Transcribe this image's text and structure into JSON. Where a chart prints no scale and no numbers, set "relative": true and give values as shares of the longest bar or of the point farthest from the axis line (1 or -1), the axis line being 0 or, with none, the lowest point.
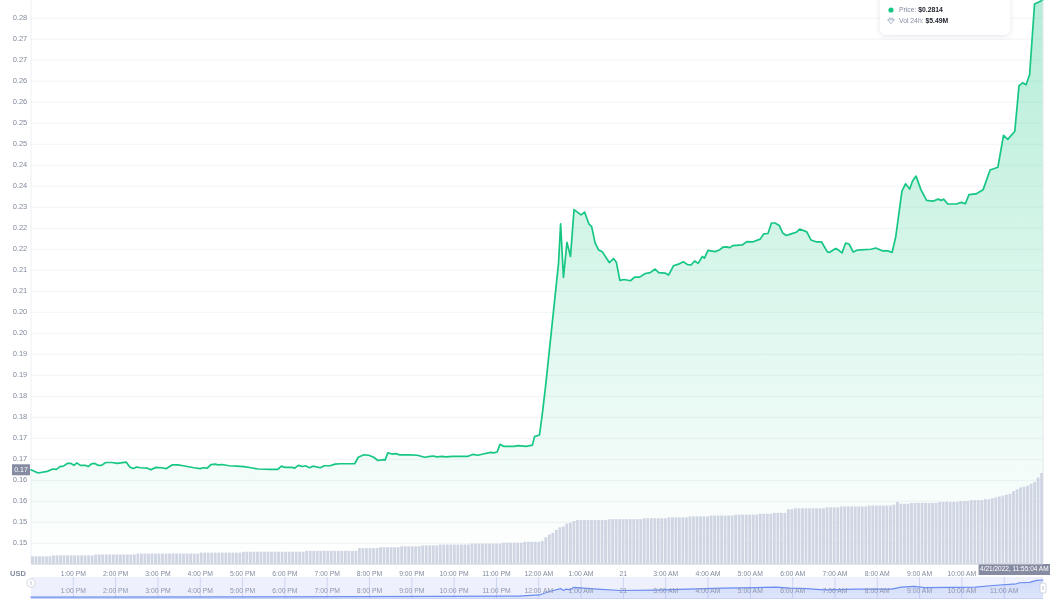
{
  "chart_data": [
    {
      "type": "area",
      "color": "#16c784",
      "ylabel": "USD",
      "grid": "y",
      "xlim": [
        "2022-04-20T12:00",
        "2022-04-21T11:55"
      ],
      "ylim": [
        0.1419,
        0.2814
      ],
      "xticks": [
        {
          "value": "2022-04-20T13:00",
          "label": "1:00 PM"
        },
        {
          "value": "2022-04-20T14:00",
          "label": "2:00 PM"
        },
        {
          "value": "2022-04-20T15:00",
          "label": "3:00 PM"
        },
        {
          "value": "2022-04-20T16:00",
          "label": "4:00 PM"
        },
        {
          "value": "2022-04-20T17:00",
          "label": "5:00 PM"
        },
        {
          "value": "2022-04-20T18:00",
          "label": "6:00 PM"
        },
        {
          "value": "2022-04-20T19:00",
          "label": "7:00 PM"
        },
        {
          "value": "2022-04-20T20:00",
          "label": "8:00 PM"
        },
        {
          "value": "2022-04-20T21:00",
          "label": "9:00 PM"
        },
        {
          "value": "2022-04-20T22:00",
          "label": "10:00 PM"
        },
        {
          "value": "2022-04-20T23:00",
          "label": "11:00 PM"
        },
        {
          "value": "2022-04-21T00:00",
          "label": "12:00 AM"
        },
        {
          "value": "2022-04-21T01:00",
          "label": "1:00 AM"
        },
        {
          "value": "2022-04-21T02:00",
          "label": "21"
        },
        {
          "value": "2022-04-21T03:00",
          "label": "3:00 AM"
        },
        {
          "value": "2022-04-21T04:00",
          "label": "4:00 AM"
        },
        {
          "value": "2022-04-21T05:00",
          "label": "5:00 AM"
        },
        {
          "value": "2022-04-21T06:00",
          "label": "6:00 AM"
        },
        {
          "value": "2022-04-21T07:00",
          "label": "7:00 AM"
        },
        {
          "value": "2022-04-21T08:00",
          "label": "8:00 AM"
        },
        {
          "value": "2022-04-21T09:00",
          "label": "9:00 AM"
        },
        {
          "value": "2022-04-21T10:00",
          "label": "10:00 AM"
        }
      ],
      "yticks": [
        {
          "value": 0.1469,
          "label": "0.15"
        },
        {
          "value": 0.1521,
          "label": "0.15"
        },
        {
          "value": 0.1573,
          "label": "0.16"
        },
        {
          "value": 0.1625,
          "label": "0.16"
        },
        {
          "value": 0.1677,
          "label": "0.17"
        },
        {
          "value": 0.1729,
          "label": "0.17"
        },
        {
          "value": 0.1781,
          "label": "0.18"
        },
        {
          "value": 0.1833,
          "label": "0.18"
        },
        {
          "value": 0.1885,
          "label": "0.19"
        },
        {
          "value": 0.1937,
          "label": "0.19"
        },
        {
          "value": 0.1989,
          "label": "0.20"
        },
        {
          "value": 0.2041,
          "label": "0.20"
        },
        {
          "value": 0.2093,
          "label": "0.21"
        },
        {
          "value": 0.2145,
          "label": "0.21"
        },
        {
          "value": 0.2197,
          "label": "0.22"
        },
        {
          "value": 0.2249,
          "label": "0.22"
        },
        {
          "value": 0.2301,
          "label": "0.23"
        },
        {
          "value": 0.2353,
          "label": "0.24"
        },
        {
          "value": 0.2405,
          "label": "0.24"
        },
        {
          "value": 0.2457,
          "label": "0.25"
        },
        {
          "value": 0.2509,
          "label": "0.25"
        },
        {
          "value": 0.2561,
          "label": "0.26"
        },
        {
          "value": 0.2613,
          "label": "0.26"
        },
        {
          "value": 0.2665,
          "label": "0.27"
        },
        {
          "value": 0.2717,
          "label": "0.27"
        },
        {
          "value": 0.2769,
          "label": "0.28"
        }
      ],
      "x": [
        "2022-04-20T12:00",
        "2022-04-20T12:10",
        "2022-04-20T12:23",
        "2022-04-20T12:31",
        "2022-04-20T12:36",
        "2022-04-20T12:41",
        "2022-04-20T12:46",
        "2022-04-20T12:52",
        "2022-04-20T12:56",
        "2022-04-20T13:01",
        "2022-04-20T13:05",
        "2022-04-20T13:10",
        "2022-04-20T13:17",
        "2022-04-20T13:21",
        "2022-04-20T13:26",
        "2022-04-20T13:30",
        "2022-04-20T13:35",
        "2022-04-20T13:40",
        "2022-04-20T13:46",
        "2022-04-20T13:55",
        "2022-04-20T14:02",
        "2022-04-20T14:15",
        "2022-04-20T14:20",
        "2022-04-20T14:25",
        "2022-04-20T14:30",
        "2022-04-20T14:35",
        "2022-04-20T14:45",
        "2022-04-20T14:50",
        "2022-04-20T14:57",
        "2022-04-20T15:05",
        "2022-04-20T15:12",
        "2022-04-20T15:20",
        "2022-04-20T15:28",
        "2022-04-20T15:36",
        "2022-04-20T15:51",
        "2022-04-20T16:00",
        "2022-04-20T16:04",
        "2022-04-20T16:10",
        "2022-04-20T16:15",
        "2022-04-20T16:22",
        "2022-04-20T16:25",
        "2022-04-20T16:31",
        "2022-04-20T16:41",
        "2022-04-20T16:52",
        "2022-04-20T17:02",
        "2022-04-20T17:12",
        "2022-04-20T17:22",
        "2022-04-20T17:40",
        "2022-04-20T17:50",
        "2022-04-20T17:55",
        "2022-04-20T18:00",
        "2022-04-20T18:10",
        "2022-04-20T18:14",
        "2022-04-20T18:19",
        "2022-04-20T18:25",
        "2022-04-20T18:29",
        "2022-04-20T18:35",
        "2022-04-20T18:40",
        "2022-04-20T18:50",
        "2022-04-20T18:56",
        "2022-04-20T19:04",
        "2022-04-20T19:11",
        "2022-04-20T19:19",
        "2022-04-20T19:39",
        "2022-04-20T19:44",
        "2022-04-20T19:52",
        "2022-04-20T19:59",
        "2022-04-20T20:06",
        "2022-04-20T20:12",
        "2022-04-20T20:20",
        "2022-04-20T20:22",
        "2022-04-20T20:26",
        "2022-04-20T20:32",
        "2022-04-20T20:37",
        "2022-04-20T20:43",
        "2022-04-20T20:58",
        "2022-04-20T21:08",
        "2022-04-20T21:18",
        "2022-04-20T21:26",
        "2022-04-20T21:31",
        "2022-04-20T21:35",
        "2022-04-20T21:43",
        "2022-04-20T21:48",
        "2022-04-20T21:58",
        "2022-04-20T22:19",
        "2022-04-20T22:26",
        "2022-04-20T22:34",
        "2022-04-20T22:41",
        "2022-04-20T22:52",
        "2022-04-20T22:56",
        "2022-04-20T23:01",
        "2022-04-20T23:05",
        "2022-04-20T23:10",
        "2022-04-20T23:25",
        "2022-04-20T23:31",
        "2022-04-20T23:42",
        "2022-04-20T23:51",
        "2022-04-20T23:54",
        "2022-04-21T00:01",
        "2022-04-21T00:05",
        "2022-04-21T00:10",
        "2022-04-21T00:15",
        "2022-04-21T00:20",
        "2022-04-21T00:25",
        "2022-04-21T00:28",
        "2022-04-21T00:31",
        "2022-04-21T00:35",
        "2022-04-21T00:40",
        "2022-04-21T00:45",
        "2022-04-21T00:50",
        "2022-04-21T01:00",
        "2022-04-21T01:05",
        "2022-04-21T01:11",
        "2022-04-21T01:15",
        "2022-04-21T01:20",
        "2022-04-21T01:25",
        "2022-04-21T01:30",
        "2022-04-21T01:40",
        "2022-04-21T01:46",
        "2022-04-21T01:50",
        "2022-04-21T01:55",
        "2022-04-21T02:01",
        "2022-04-21T02:10",
        "2022-04-21T02:16",
        "2022-04-21T02:23",
        "2022-04-21T02:31",
        "2022-04-21T02:38",
        "2022-04-21T02:45",
        "2022-04-21T02:50",
        "2022-04-21T02:59",
        "2022-04-21T03:04",
        "2022-04-21T03:11",
        "2022-04-21T03:18",
        "2022-04-21T03:25",
        "2022-04-21T03:31",
        "2022-04-21T03:36",
        "2022-04-21T03:41",
        "2022-04-21T03:46",
        "2022-04-21T03:52",
        "2022-04-21T03:55",
        "2022-04-21T04:00",
        "2022-04-21T04:10",
        "2022-04-21T04:16",
        "2022-04-21T04:21",
        "2022-04-21T04:26",
        "2022-04-21T04:31",
        "2022-04-21T04:35",
        "2022-04-21T04:49",
        "2022-04-21T04:55",
        "2022-04-21T05:03",
        "2022-04-21T05:14",
        "2022-04-21T05:19",
        "2022-04-21T05:25",
        "2022-04-21T05:30",
        "2022-04-21T05:35",
        "2022-04-21T05:41",
        "2022-04-21T05:46",
        "2022-04-21T05:51",
        "2022-04-21T05:58",
        "2022-04-21T06:05",
        "2022-04-21T06:10",
        "2022-04-21T06:20",
        "2022-04-21T06:26",
        "2022-04-21T06:34",
        "2022-04-21T06:41",
        "2022-04-21T06:49",
        "2022-04-21T06:52",
        "2022-04-21T07:01",
        "2022-04-21T07:05",
        "2022-04-21T07:10",
        "2022-04-21T07:15",
        "2022-04-21T07:20",
        "2022-04-21T07:26",
        "2022-04-21T07:32",
        "2022-04-21T07:51",
        "2022-04-21T07:58",
        "2022-04-21T08:07",
        "2022-04-21T08:15",
        "2022-04-21T08:21",
        "2022-04-21T08:26",
        "2022-04-21T08:35",
        "2022-04-21T08:40",
        "2022-04-21T08:46",
        "2022-04-21T08:50",
        "2022-04-21T08:55",
        "2022-04-21T09:02",
        "2022-04-21T09:10",
        "2022-04-21T09:19",
        "2022-04-21T09:26",
        "2022-04-21T09:31",
        "2022-04-21T09:34",
        "2022-04-21T09:40",
        "2022-04-21T09:52",
        "2022-04-21T09:59",
        "2022-04-21T10:05",
        "2022-04-21T10:10",
        "2022-04-21T10:20",
        "2022-04-21T10:30",
        "2022-04-21T10:40",
        "2022-04-21T10:51",
        "2022-04-21T10:59",
        "2022-04-21T11:05",
        "2022-04-21T11:15",
        "2022-04-21T11:21",
        "2022-04-21T11:26",
        "2022-04-21T11:31",
        "2022-04-21T11:36",
        "2022-04-21T11:43",
        "2022-04-21T11:55"
      ],
      "values": [
        0.1651,
        0.1643,
        0.1647,
        0.1653,
        0.1652,
        0.1659,
        0.166,
        0.1667,
        0.1667,
        0.1662,
        0.1668,
        0.1662,
        0.1662,
        0.1659,
        0.1666,
        0.1667,
        0.1662,
        0.1662,
        0.1669,
        0.1669,
        0.1667,
        0.167,
        0.1658,
        0.1654,
        0.1658,
        0.1656,
        0.1655,
        0.1651,
        0.1657,
        0.1656,
        0.1654,
        0.1663,
        0.1663,
        0.1661,
        0.1656,
        0.1654,
        0.1656,
        0.1655,
        0.1664,
        0.1665,
        0.1663,
        0.1664,
        0.1661,
        0.166,
        0.1659,
        0.1656,
        0.1653,
        0.1652,
        0.1652,
        0.166,
        0.1657,
        0.1657,
        0.1655,
        0.1662,
        0.1659,
        0.1661,
        0.1656,
        0.166,
        0.1656,
        0.1661,
        0.1661,
        0.1665,
        0.1666,
        0.1666,
        0.1682,
        0.1688,
        0.1687,
        0.1682,
        0.1674,
        0.1676,
        0.1675,
        0.1693,
        0.169,
        0.1691,
        0.1688,
        0.1688,
        0.1687,
        0.1682,
        0.1684,
        0.1685,
        0.1683,
        0.1684,
        0.1683,
        0.1684,
        0.1684,
        0.1689,
        0.1687,
        0.169,
        0.1694,
        0.1693,
        0.1695,
        0.1714,
        0.1709,
        0.1709,
        0.1711,
        0.1709,
        0.1712,
        0.1733,
        0.1737,
        0.1789,
        0.1863,
        0.1946,
        0.2029,
        0.2112,
        0.2162,
        0.226,
        0.2127,
        0.2214,
        0.2179,
        0.2295,
        0.2282,
        0.2289,
        0.226,
        0.2253,
        0.2212,
        0.2195,
        0.2191,
        0.2164,
        0.2174,
        0.2165,
        0.212,
        0.2122,
        0.2119,
        0.2128,
        0.2128,
        0.2137,
        0.2139,
        0.2148,
        0.2139,
        0.2138,
        0.2133,
        0.2156,
        0.216,
        0.2166,
        0.2159,
        0.2158,
        0.2168,
        0.2162,
        0.2179,
        0.2175,
        0.2194,
        0.2191,
        0.2195,
        0.2202,
        0.2203,
        0.2201,
        0.2206,
        0.2208,
        0.2216,
        0.2215,
        0.2222,
        0.2235,
        0.2236,
        0.2262,
        0.2262,
        0.2256,
        0.2237,
        0.2231,
        0.2235,
        0.2239,
        0.2247,
        0.224,
        0.222,
        0.2215,
        0.2215,
        0.2191,
        0.2189,
        0.2199,
        0.2195,
        0.2188,
        0.2212,
        0.221,
        0.219,
        0.2195,
        0.2197,
        0.22,
        0.2193,
        0.2193,
        0.2189,
        0.2226,
        0.2341,
        0.2359,
        0.2346,
        0.2366,
        0.2378,
        0.2344,
        0.2318,
        0.2316,
        0.2321,
        0.2318,
        0.2321,
        0.2309,
        0.2309,
        0.2313,
        0.231,
        0.2332,
        0.2334,
        0.2344,
        0.2393,
        0.24,
        0.2479,
        0.2469,
        0.2489,
        0.2602,
        0.2609,
        0.2604,
        0.2629,
        0.2804,
        0.2814
      ],
      "ref_lines": [
        {
          "axis": "x",
          "value": "2022-04-21T11:55",
          "label": "4/21/2022, 11:55:04 AM",
          "color": "#e3e6ec"
        }
      ],
      "annotations": [
        "Price: $0.2814",
        "Vol 24h: $5.49M",
        {
          "text": "0.17",
          "y": 0.1651
        }
      ]
    },
    {
      "type": "bar",
      "relative": true,
      "color": "#cfd5e3",
      "categories": [
        null,
        null,
        null,
        null,
        null,
        null,
        null,
        null,
        null,
        null,
        null,
        null,
        null,
        null,
        null,
        null,
        null,
        null,
        null,
        null,
        null,
        null,
        null,
        null,
        null,
        null,
        null,
        null,
        null,
        null,
        null,
        null,
        null,
        null,
        null,
        null,
        null,
        null,
        null,
        null,
        null,
        null,
        null,
        null,
        null,
        null,
        null,
        null,
        null,
        null,
        null,
        null,
        null,
        null,
        null,
        null,
        null,
        null,
        null,
        null,
        null,
        null,
        null,
        null,
        null,
        null,
        null,
        null,
        null,
        null,
        null,
        null,
        null,
        null,
        null,
        null,
        null,
        null,
        null,
        null,
        null,
        null,
        null,
        null,
        null,
        null,
        null,
        null,
        null,
        null,
        null,
        null,
        null,
        null,
        null,
        null,
        null,
        null,
        null,
        null,
        null,
        null,
        null,
        null,
        null,
        null,
        null,
        null,
        null,
        null,
        null,
        null,
        null,
        null,
        null,
        null,
        null,
        null,
        null,
        null,
        null,
        null,
        null,
        null,
        null,
        null,
        null,
        null,
        null,
        null,
        null,
        null,
        null,
        null,
        null,
        null,
        null,
        null,
        null,
        null,
        null,
        null,
        null,
        null,
        null,
        null,
        null,
        null,
        null,
        null,
        null,
        null,
        null,
        null,
        null,
        null,
        null,
        null,
        null,
        null,
        null,
        null,
        null,
        null,
        null,
        null,
        null,
        null,
        null,
        null,
        null,
        null,
        null,
        null,
        null,
        null,
        null,
        null,
        null,
        null,
        null,
        null,
        null,
        null,
        null,
        null,
        null,
        null,
        null,
        null,
        null,
        null,
        null,
        null,
        null,
        null,
        null,
        null,
        null,
        null,
        null,
        null,
        null,
        null,
        null,
        null,
        null,
        null,
        null,
        null,
        null,
        null,
        null,
        null,
        null,
        null,
        null,
        null,
        null,
        null,
        null,
        null,
        null,
        null,
        null,
        null,
        null,
        null,
        null,
        null,
        null,
        null,
        null,
        null,
        null,
        null,
        null,
        null,
        null,
        null,
        null,
        null,
        null,
        null,
        null,
        null,
        null,
        null,
        null,
        null,
        null,
        null,
        null,
        null,
        null,
        null,
        null,
        null,
        null,
        null,
        null,
        null,
        null,
        null,
        null,
        null,
        null,
        null,
        null,
        null,
        null,
        null,
        null,
        null,
        null,
        null,
        null,
        null,
        null,
        null,
        null,
        null,
        null,
        null,
        null,
        null,
        null,
        null
      ],
      "values": [
        0.08,
        0.08,
        0.08,
        0.08,
        0.08,
        0.08,
        0.09,
        0.09,
        0.09,
        0.09,
        0.09,
        0.09,
        0.09,
        0.09,
        0.09,
        0.09,
        0.09,
        0.09,
        0.1,
        0.1,
        0.1,
        0.1,
        0.1,
        0.1,
        0.1,
        0.1,
        0.1,
        0.1,
        0.1,
        0.1,
        0.11,
        0.11,
        0.11,
        0.11,
        0.11,
        0.11,
        0.11,
        0.11,
        0.11,
        0.11,
        0.11,
        0.11,
        0.11,
        0.11,
        0.11,
        0.11,
        0.11,
        0.11,
        0.12,
        0.12,
        0.12,
        0.12,
        0.12,
        0.12,
        0.12,
        0.12,
        0.12,
        0.12,
        0.12,
        0.12,
        0.13,
        0.13,
        0.13,
        0.13,
        0.13,
        0.13,
        0.13,
        0.13,
        0.13,
        0.13,
        0.13,
        0.13,
        0.13,
        0.13,
        0.13,
        0.13,
        0.13,
        0.13,
        0.14,
        0.14,
        0.14,
        0.14,
        0.14,
        0.14,
        0.14,
        0.14,
        0.14,
        0.14,
        0.14,
        0.14,
        0.14,
        0.14,
        0.14,
        0.17,
        0.17,
        0.17,
        0.17,
        0.17,
        0.17,
        0.18,
        0.18,
        0.18,
        0.18,
        0.18,
        0.18,
        0.19,
        0.19,
        0.19,
        0.19,
        0.19,
        0.19,
        0.2,
        0.2,
        0.2,
        0.2,
        0.2,
        0.21,
        0.21,
        0.21,
        0.21,
        0.21,
        0.21,
        0.21,
        0.21,
        0.21,
        0.22,
        0.22,
        0.22,
        0.22,
        0.22,
        0.22,
        0.22,
        0.22,
        0.22,
        0.23,
        0.23,
        0.23,
        0.23,
        0.23,
        0.23,
        0.24,
        0.24,
        0.24,
        0.24,
        0.24,
        0.25,
        0.29,
        0.32,
        0.34,
        0.37,
        0.4,
        0.41,
        0.44,
        0.45,
        0.47,
        0.48,
        0.48,
        0.48,
        0.48,
        0.48,
        0.48,
        0.48,
        0.48,
        0.48,
        0.49,
        0.49,
        0.49,
        0.49,
        0.49,
        0.49,
        0.49,
        0.49,
        0.49,
        0.49,
        0.5,
        0.5,
        0.5,
        0.5,
        0.5,
        0.5,
        0.5,
        0.51,
        0.51,
        0.51,
        0.51,
        0.51,
        0.51,
        0.52,
        0.52,
        0.52,
        0.52,
        0.52,
        0.52,
        0.53,
        0.53,
        0.53,
        0.53,
        0.53,
        0.53,
        0.53,
        0.54,
        0.54,
        0.54,
        0.54,
        0.54,
        0.54,
        0.54,
        0.55,
        0.55,
        0.55,
        0.55,
        0.56,
        0.56,
        0.56,
        0.56,
        0.6,
        0.6,
        0.61,
        0.61,
        0.61,
        0.61,
        0.61,
        0.61,
        0.61,
        0.61,
        0.61,
        0.62,
        0.62,
        0.62,
        0.62,
        0.63,
        0.63,
        0.63,
        0.63,
        0.63,
        0.63,
        0.63,
        0.63,
        0.64,
        0.64,
        0.64,
        0.64,
        0.64,
        0.64,
        0.64,
        0.65,
        0.68,
        0.66,
        0.66,
        0.66,
        0.67,
        0.67,
        0.67,
        0.67,
        0.67,
        0.67,
        0.67,
        0.67,
        0.68,
        0.68,
        0.68,
        0.68,
        0.68,
        0.68,
        0.69,
        0.69,
        0.69,
        0.7,
        0.7,
        0.7,
        0.7,
        0.71,
        0.71,
        0.72,
        0.73,
        0.74,
        0.75,
        0.76,
        0.77,
        0.8,
        0.82,
        0.84,
        0.85,
        0.86,
        0.88,
        0.9,
        0.95,
        1
      ]
    },
    {
      "type": "area",
      "relative": true,
      "color": "#6b8def",
      "grid": "x",
      "xlim": [
        "2022-04-20T12:00",
        "2022-04-21T11:55"
      ],
      "xticks": [
        {
          "value": "2022-04-20T13:00",
          "label": "1:00 PM"
        },
        {
          "value": "2022-04-20T14:00",
          "label": "2:00 PM"
        },
        {
          "value": "2022-04-20T15:00",
          "label": "3:00 PM"
        },
        {
          "value": "2022-04-20T16:00",
          "label": "4:00 PM"
        },
        {
          "value": "2022-04-20T17:00",
          "label": "5:00 PM"
        },
        {
          "value": "2022-04-20T18:00",
          "label": "6:00 PM"
        },
        {
          "value": "2022-04-20T19:00",
          "label": "7:00 PM"
        },
        {
          "value": "2022-04-20T20:00",
          "label": "8:00 PM"
        },
        {
          "value": "2022-04-20T21:00",
          "label": "9:00 PM"
        },
        {
          "value": "2022-04-20T22:00",
          "label": "10:00 PM"
        },
        {
          "value": "2022-04-20T23:00",
          "label": "11:00 PM"
        },
        {
          "value": "2022-04-21T00:00",
          "label": "12:00 AM"
        },
        {
          "value": "2022-04-21T01:00",
          "label": "1:00 AM"
        },
        {
          "value": "2022-04-21T02:00",
          "label": "21"
        },
        {
          "value": "2022-04-21T03:00",
          "label": "3:00 AM"
        },
        {
          "value": "2022-04-21T04:00",
          "label": "4:00 AM"
        },
        {
          "value": "2022-04-21T05:00",
          "label": "5:00 AM"
        },
        {
          "value": "2022-04-21T06:00",
          "label": "6:00 AM"
        },
        {
          "value": "2022-04-21T07:00",
          "label": "7:00 AM"
        },
        {
          "value": "2022-04-21T08:00",
          "label": "8:00 AM"
        },
        {
          "value": "2022-04-21T09:00",
          "label": "9:00 AM"
        },
        {
          "value": "2022-04-21T10:00",
          "label": "10:00 AM"
        },
        {
          "value": "2022-04-21T11:00",
          "label": "11:00 AM"
        }
      ],
      "x": [
        "2022-04-20T12:00",
        "2022-04-20T19:46",
        "2022-04-20T23:32",
        "2022-04-21T00:01",
        "2022-04-21T00:15",
        "2022-04-21T00:31",
        "2022-04-21T00:35",
        "2022-04-21T00:39",
        "2022-04-21T00:45",
        "2022-04-21T00:49",
        "2022-04-21T01:04",
        "2022-04-21T01:23",
        "2022-04-21T01:56",
        "2022-04-21T02:44",
        "2022-04-21T03:32",
        "2022-04-21T04:20",
        "2022-04-21T05:09",
        "2022-04-21T05:37",
        "2022-04-21T05:56",
        "2022-04-21T06:20",
        "2022-04-21T06:44",
        "2022-04-21T07:32",
        "2022-04-21T08:20",
        "2022-04-21T08:34",
        "2022-04-21T08:53",
        "2022-04-21T09:07",
        "2022-04-21T10:19",
        "2022-04-21T10:44",
        "2022-04-21T11:17",
        "2022-04-21T11:22",
        "2022-04-21T11:36",
        "2022-04-21T11:46",
        "2022-04-21T11:55"
      ],
      "values": [
        0,
        0.03,
        0.06,
        0.13,
        0.33,
        0.5,
        0.39,
        0.47,
        0.43,
        0.57,
        0.53,
        0.47,
        0.39,
        0.41,
        0.47,
        0.53,
        0.56,
        0.59,
        0.53,
        0.5,
        0.43,
        0.47,
        0.47,
        0.59,
        0.63,
        0.56,
        0.59,
        0.68,
        0.78,
        0.84,
        0.86,
        0.98,
        1
      ]
    }
  ]
}
